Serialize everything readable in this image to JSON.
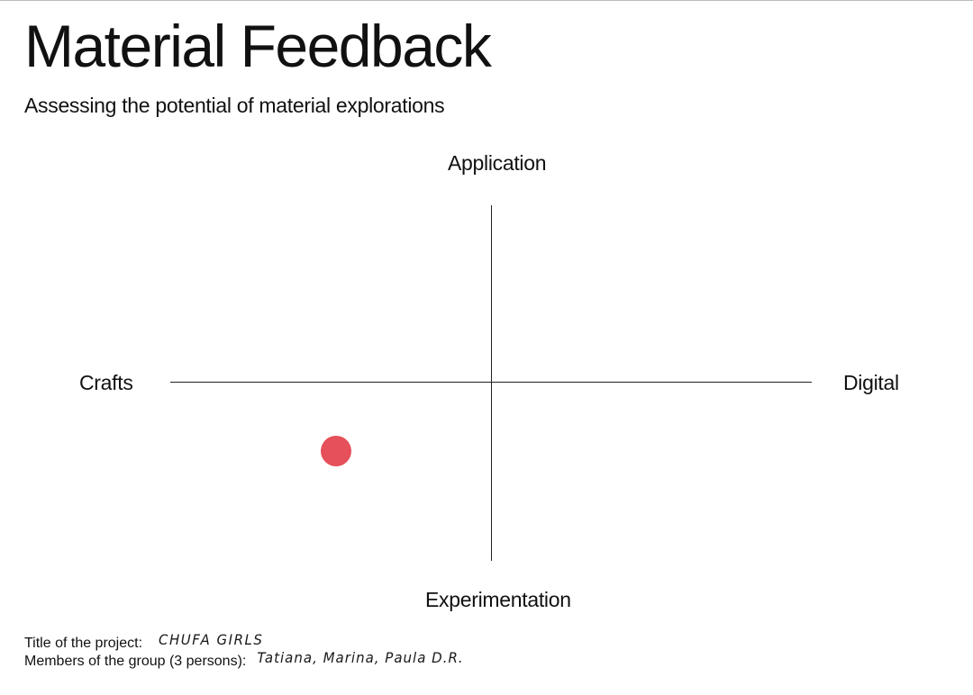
{
  "page": {
    "title": "Material Feedback",
    "subtitle": "Assessing the potential of material explorations"
  },
  "quadrant": {
    "top_label": "Application",
    "bottom_label": "Experimentation",
    "left_label": "Crafts",
    "right_label": "Digital",
    "marker_color": "#e5505a"
  },
  "footer": {
    "project_label": "Title of the project:",
    "project_value": "CHUFA GIRLS",
    "members_label": "Members of the group (3 persons):",
    "members_value": "Tatiana, Marina, Paula D.R."
  }
}
